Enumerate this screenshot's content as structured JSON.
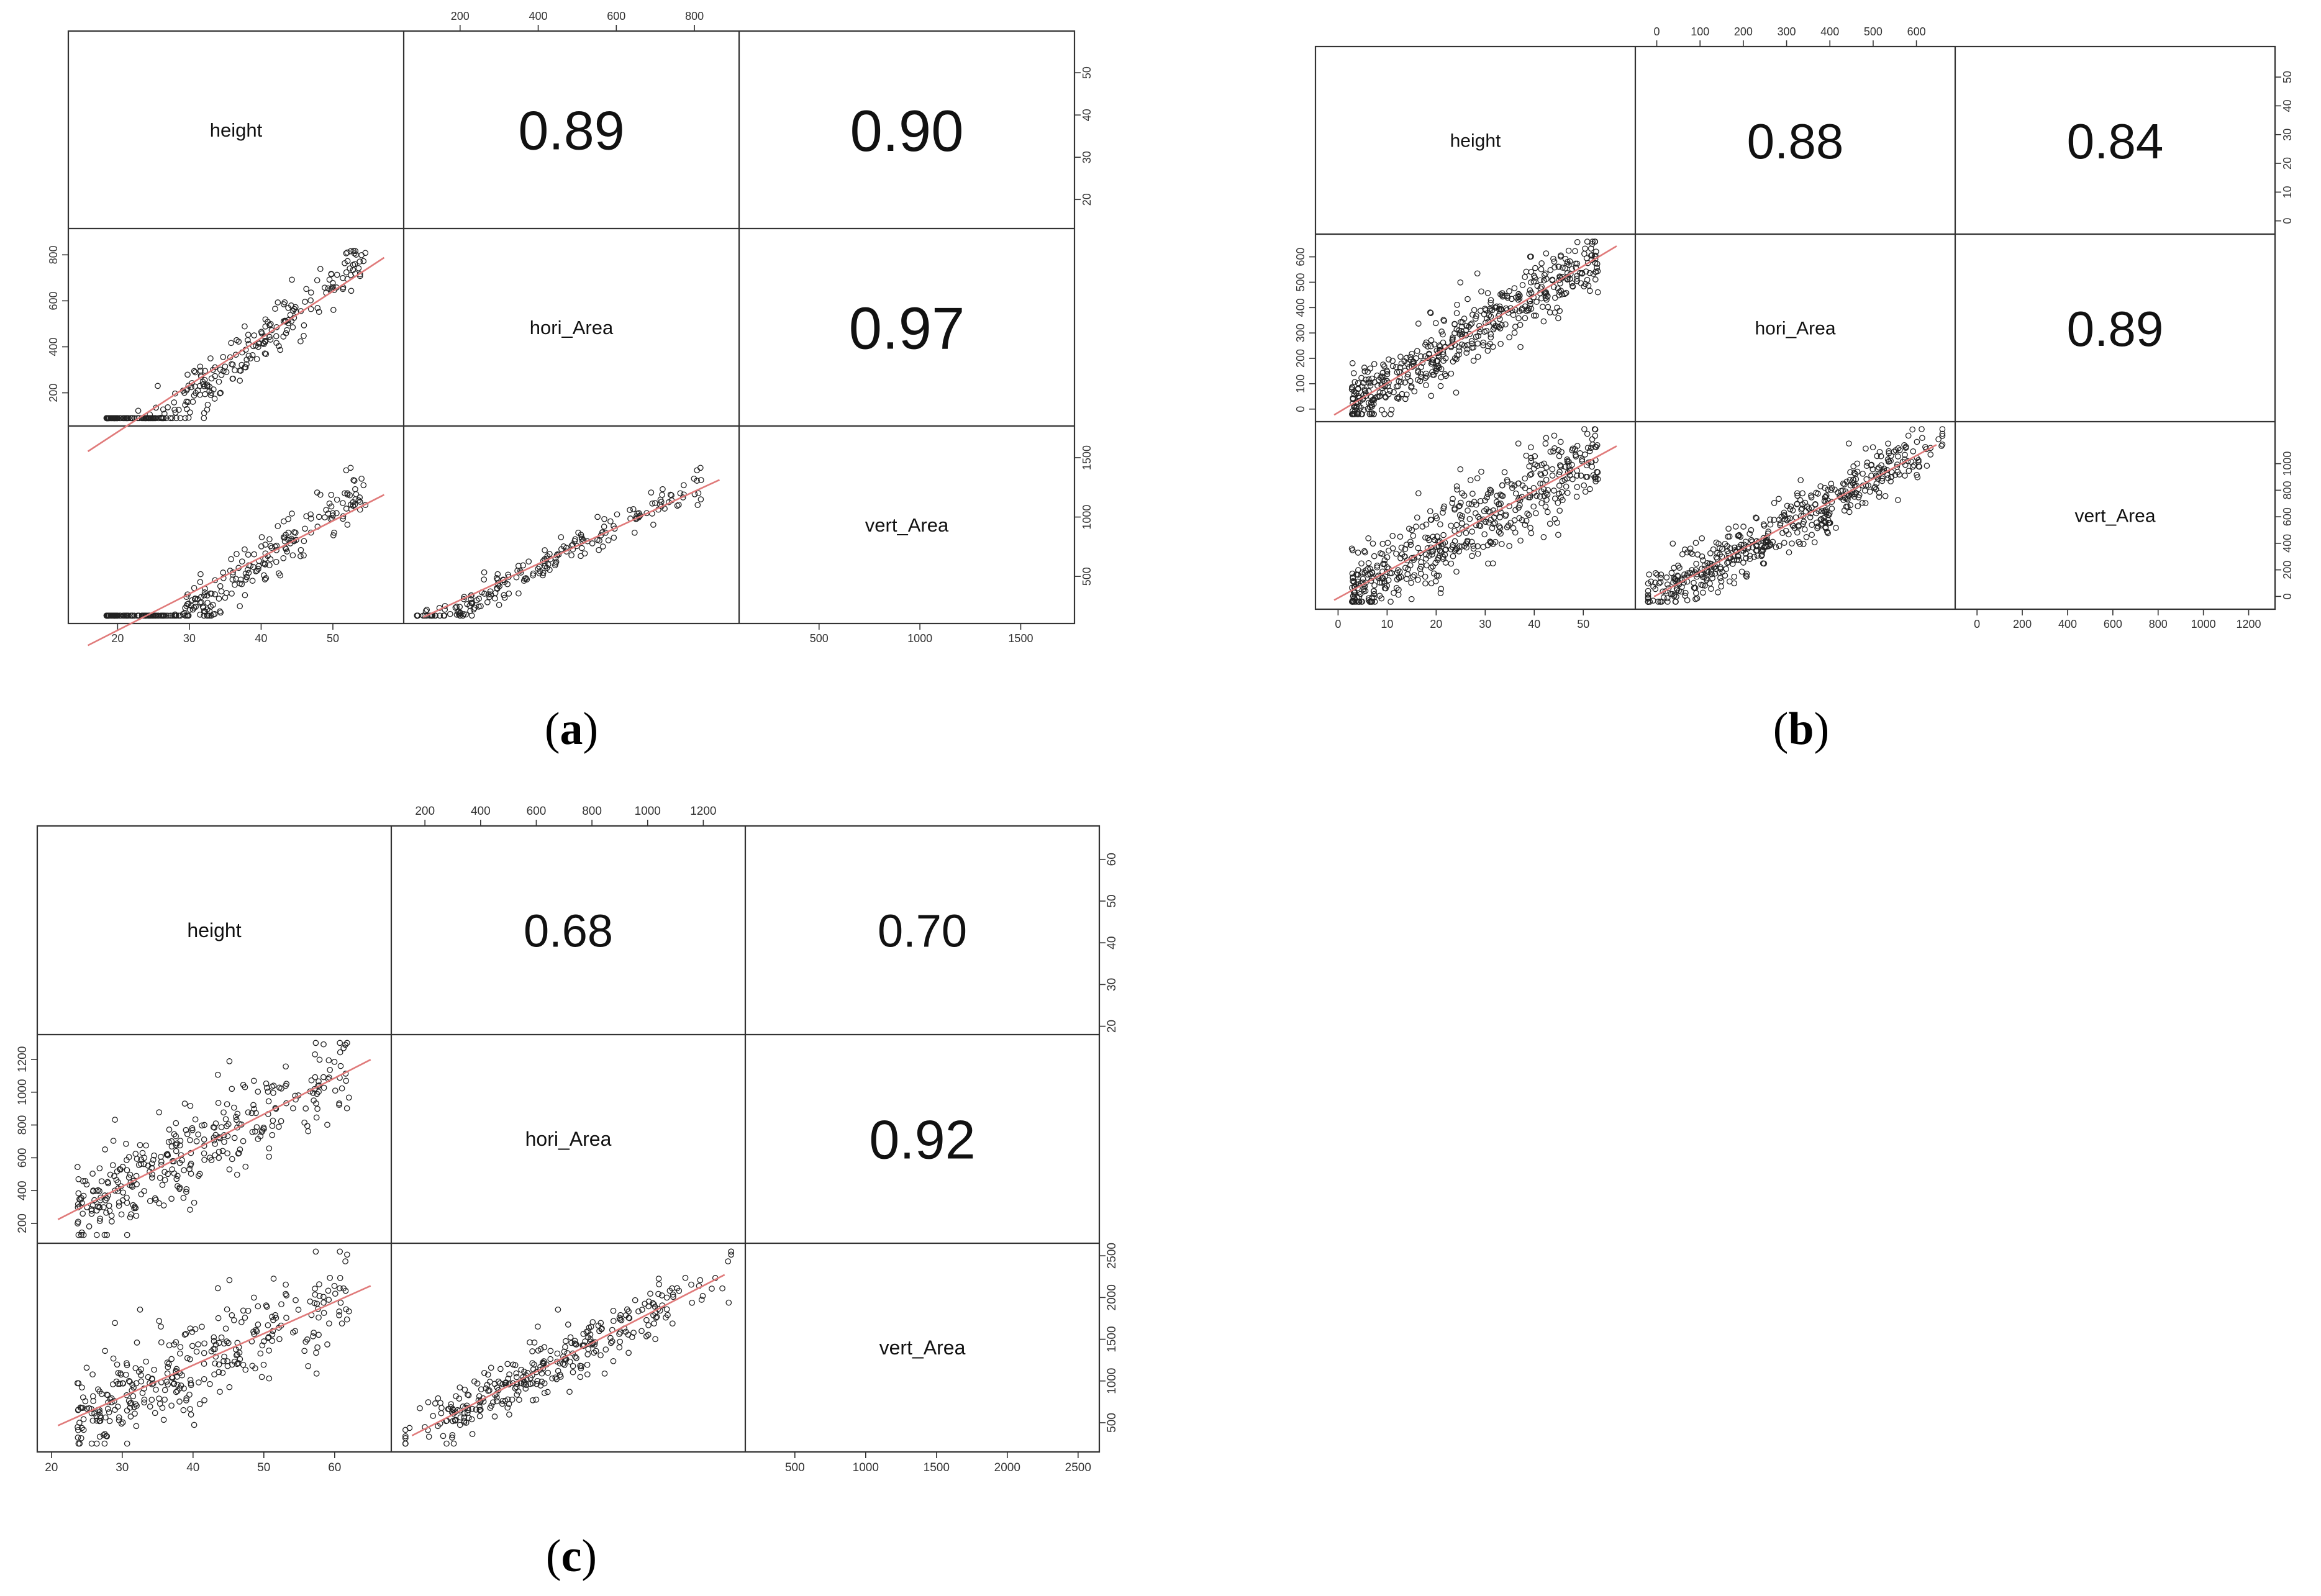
{
  "figure": {
    "panel_labels": [
      {
        "open": "(",
        "letter": "a",
        "close": ")"
      },
      {
        "open": "(",
        "letter": "b",
        "close": ")"
      },
      {
        "open": "(",
        "letter": "c",
        "close": ")"
      }
    ]
  },
  "colors": {
    "point": "#222222",
    "fit_line": "#e07a7a",
    "frame": "#333333",
    "tick_text": "#333333"
  },
  "chart_data": [
    {
      "type": "scatter",
      "title": "(a)",
      "variables": [
        "height",
        "hori_Area",
        "vert_Area"
      ],
      "correlations": {
        "height_hori_Area": "0.89",
        "height_vert_Area": "0.90",
        "hori_Area_vert_Area": "0.97"
      },
      "axes": {
        "height": {
          "range": [
            15,
            58
          ],
          "ticks": [
            "20",
            "30",
            "40",
            "50"
          ],
          "right_ticks": [
            "20",
            "30",
            "40",
            "50"
          ]
        },
        "hori_Area": {
          "range": [
            90,
            880
          ],
          "ticks": [
            "200",
            "400",
            "600",
            "800"
          ],
          "left_ticks": [
            "200",
            "400",
            "600",
            "800"
          ]
        },
        "vert_Area": {
          "range": [
            170,
            1700
          ],
          "ticks": [
            "500",
            "1000",
            "1500"
          ],
          "right_ticks": [
            "500",
            "1000",
            "1500"
          ]
        }
      },
      "point_count": 300,
      "trend": {
        "height_to_hori": [
          -585,
          25.4,
          55
        ],
        "height_to_vert": [
          -950,
          43,
          120
        ],
        "hori_to_vert": [
          -110,
          1.72,
          70
        ]
      }
    },
    {
      "type": "scatter",
      "title": "(b)",
      "variables": [
        "height",
        "hori_Area",
        "vert_Area"
      ],
      "correlations": {
        "height_hori_Area": "0.88",
        "height_vert_Area": "0.84",
        "hori_Area_vert_Area": "0.89"
      },
      "axes": {
        "height": {
          "range": [
            -2,
            58
          ],
          "ticks": [
            "0",
            "10",
            "20",
            "30",
            "40",
            "50"
          ],
          "right_ticks": [
            "0",
            "10",
            "20",
            "30",
            "40",
            "50"
          ]
        },
        "hori_Area": {
          "range": [
            -20,
            660
          ],
          "ticks": [
            "0",
            "100",
            "200",
            "300",
            "400",
            "500",
            "600"
          ],
          "left_ticks": [
            "0",
            "100",
            "200",
            "300",
            "400",
            "500",
            "600"
          ]
        },
        "vert_Area": {
          "range": [
            -40,
            1260
          ],
          "ticks": [
            "0",
            "200",
            "400",
            "600",
            "800",
            "1000",
            "1200"
          ],
          "right_ticks": [
            "0",
            "200",
            "400",
            "600",
            "800",
            "1000"
          ]
        }
      },
      "point_count": 520,
      "trend": {
        "height_to_hori": [
          -15,
          11.5,
          60
        ],
        "height_to_vert": [
          -20,
          21,
          150
        ],
        "hori_to_vert": [
          15,
          1.75,
          110
        ]
      }
    },
    {
      "type": "scatter",
      "title": "(c)",
      "variables": [
        "height",
        "hori_Area",
        "vert_Area"
      ],
      "correlations": {
        "height_hori_Area": "0.68",
        "height_vert_Area": "0.70",
        "hori_Area_vert_Area": "0.92"
      },
      "axes": {
        "height": {
          "range": [
            20,
            66
          ],
          "ticks": [
            "20",
            "30",
            "40",
            "50",
            "60"
          ],
          "right_ticks": [
            "20",
            "30",
            "40",
            "50",
            "60"
          ]
        },
        "hori_Area": {
          "range": [
            130,
            1300
          ],
          "ticks": [
            "200",
            "400",
            "600",
            "800",
            "1000",
            "1200"
          ],
          "left_ticks": [
            "200",
            "400",
            "600",
            "800",
            "1000",
            "1200"
          ]
        },
        "vert_Area": {
          "range": [
            250,
            2550
          ],
          "ticks": [
            "500",
            "1000",
            "1500",
            "2000",
            "2500"
          ],
          "right_ticks": [
            "500",
            "1000",
            "1500",
            "2000",
            "2500"
          ]
        }
      },
      "point_count": 330,
      "trend": {
        "height_to_hori": [
          -250,
          22,
          140
        ],
        "height_to_vert": [
          -480,
          40,
          260
        ],
        "hori_to_vert": [
          90,
          1.72,
          170
        ]
      }
    }
  ]
}
